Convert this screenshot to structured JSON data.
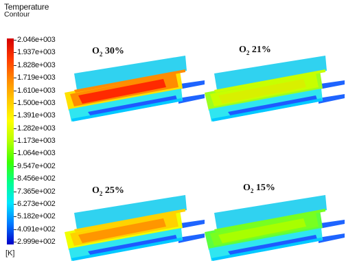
{
  "legend": {
    "title": "Temperature",
    "subtitle": "Contour",
    "unit": "[K]",
    "ticks": [
      "2.046e+003",
      "1.937e+003",
      "1.828e+003",
      "1.719e+003",
      "1.610e+003",
      "1.500e+003",
      "1.391e+003",
      "1.282e+003",
      "1.173e+003",
      "1.064e+003",
      "9.547e+002",
      "8.456e+002",
      "7.365e+002",
      "6.273e+002",
      "5.182e+002",
      "4.091e+002",
      "2.999e+002"
    ]
  },
  "panels": [
    {
      "o2": "O",
      "sub": "2",
      "pct": "30%",
      "core": "#ff2a00",
      "mid": "#ff8c00",
      "outer": "#ffe100"
    },
    {
      "o2": "O",
      "sub": "2",
      "pct": "21%",
      "core": "#d8f000",
      "mid": "#c8ff00",
      "outer": "#9cff20"
    },
    {
      "o2": "O",
      "sub": "2",
      "pct": "25%",
      "core": "#ff9600",
      "mid": "#ffd200",
      "outer": "#f0ff00"
    },
    {
      "o2": "O",
      "sub": "2",
      "pct": "15%",
      "core": "#a8ff00",
      "mid": "#78ff20",
      "outer": "#5cff40"
    }
  ]
}
